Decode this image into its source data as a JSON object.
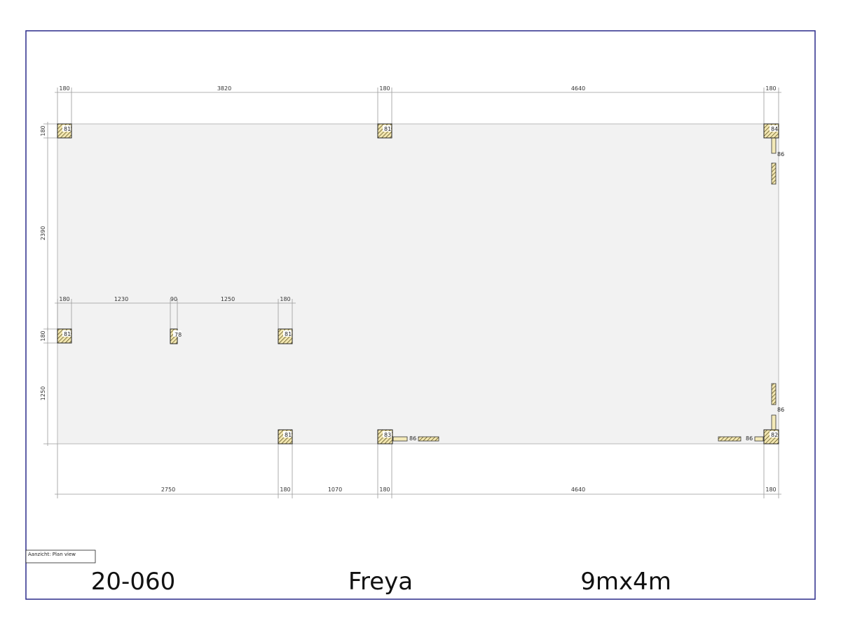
{
  "drawing": {
    "view_label": "Aanzicht:  Plan view",
    "project_number": "20-060",
    "model_name": "Freya",
    "size": "9mx4m"
  },
  "dimensions": {
    "top": [
      "180",
      "3820",
      "180",
      "4640",
      "180"
    ],
    "left_upper": [
      "180",
      "2390"
    ],
    "middle": [
      "180",
      "1230",
      "90",
      "1250",
      "180"
    ],
    "left_lower": [
      "180",
      "1250"
    ],
    "bottom": [
      "2750",
      "180",
      "1070",
      "180",
      "4640",
      "180"
    ]
  },
  "posts": {
    "top_left": "81",
    "top_mid": "81",
    "top_right": "84",
    "mid_left": "81",
    "mid_small": "78",
    "mid_right": "81",
    "bottom_left": "81",
    "bottom_mid": "83",
    "bottom_right": "82"
  },
  "wall_tags": {
    "right_upper": "86",
    "right_lower": "86",
    "bottom_mid": "86",
    "bottom_right": "86"
  }
}
